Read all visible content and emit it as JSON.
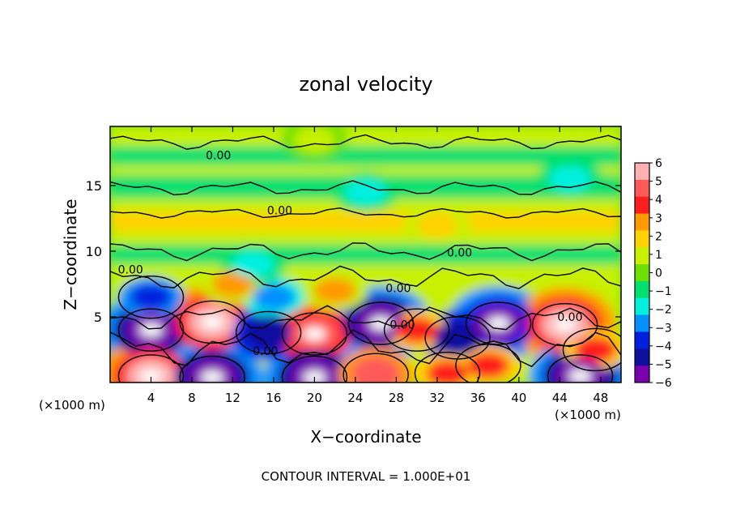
{
  "chart_data": {
    "type": "heatmap",
    "title": "zonal velocity",
    "xlabel": "X−coordinate",
    "ylabel": "Z−coordinate",
    "x_unit_left": "(×1000 m)",
    "x_unit_right": "(×1000 m)",
    "footer": "CONTOUR INTERVAL = 1.000E+01",
    "xlim": [
      0,
      50
    ],
    "ylim": [
      0,
      19.5
    ],
    "x_ticks": [
      "4",
      "8",
      "12",
      "16",
      "20",
      "24",
      "28",
      "32",
      "36",
      "40",
      "44",
      "48"
    ],
    "y_ticks": [
      "5",
      "10",
      "15"
    ],
    "colorbar": {
      "labels": [
        "6",
        "5",
        "4",
        "3",
        "2",
        "1",
        "0",
        "−1",
        "−2",
        "−3",
        "−4",
        "−5",
        "−6"
      ],
      "colors": [
        "#ffb0b0",
        "#ff5a5a",
        "#ff1e1e",
        "#ff9a00",
        "#ffd200",
        "#c8f000",
        "#6ce000",
        "#00e070",
        "#00f0e0",
        "#0090ff",
        "#0020e0",
        "#1010a0",
        "#7a00b0"
      ],
      "range": [
        -6,
        6
      ]
    },
    "contour_labels": [
      {
        "text": "0.00",
        "x": 10.6,
        "z": 17.3
      },
      {
        "text": "0.00",
        "x": 16.6,
        "z": 13.1
      },
      {
        "text": "0.00",
        "x": 2.0,
        "z": 8.6
      },
      {
        "text": "0.00",
        "x": 34.2,
        "z": 9.9
      },
      {
        "text": "0.00",
        "x": 28.2,
        "z": 7.2
      },
      {
        "text": "0.00",
        "x": 28.6,
        "z": 4.4
      },
      {
        "text": "0.00",
        "x": 15.2,
        "z": 2.4
      },
      {
        "text": "0.00",
        "x": 45.0,
        "z": 5.0
      }
    ],
    "field_features": [
      {
        "x": 4.0,
        "z": 4.0,
        "value": -6.0
      },
      {
        "x": 10.0,
        "z": 4.6,
        "value": 6.0
      },
      {
        "x": 15.5,
        "z": 3.8,
        "value": -5.0
      },
      {
        "x": 20.0,
        "z": 3.7,
        "value": 5.5
      },
      {
        "x": 26.5,
        "z": 4.5,
        "value": -6.0
      },
      {
        "x": 30.0,
        "z": 4.0,
        "value": 4.0
      },
      {
        "x": 34.0,
        "z": 3.4,
        "value": -5.0
      },
      {
        "x": 38.0,
        "z": 4.5,
        "value": -5.5
      },
      {
        "x": 44.5,
        "z": 4.4,
        "value": 6.0
      },
      {
        "x": 47.5,
        "z": 2.5,
        "value": 4.0
      },
      {
        "x": 4.0,
        "z": 0.5,
        "value": 6.0
      },
      {
        "x": 10.0,
        "z": 0.4,
        "value": -6.0
      },
      {
        "x": 20.0,
        "z": 0.4,
        "value": -6.0
      },
      {
        "x": 26.0,
        "z": 0.6,
        "value": 5.0
      },
      {
        "x": 33.0,
        "z": 0.7,
        "value": 4.0
      },
      {
        "x": 37.0,
        "z": 1.3,
        "value": 4.0
      },
      {
        "x": 46.0,
        "z": 0.5,
        "value": -6.0
      },
      {
        "x": 4.0,
        "z": 6.5,
        "value": -4.0
      },
      {
        "x": 16.0,
        "z": 6.5,
        "value": -3.0
      },
      {
        "x": 12.0,
        "z": 7.5,
        "value": 3.0
      },
      {
        "x": 22.0,
        "z": 7.0,
        "value": 3.0
      },
      {
        "x": 32.0,
        "z": 12.0,
        "value": 2.5
      },
      {
        "x": 14.0,
        "z": 9.0,
        "value": -2.0
      },
      {
        "x": 25.0,
        "z": 14.5,
        "value": -1.5
      },
      {
        "x": 45.0,
        "z": 15.5,
        "value": -1.5
      },
      {
        "x": 20.0,
        "z": 18.5,
        "value": 1.0
      }
    ]
  }
}
